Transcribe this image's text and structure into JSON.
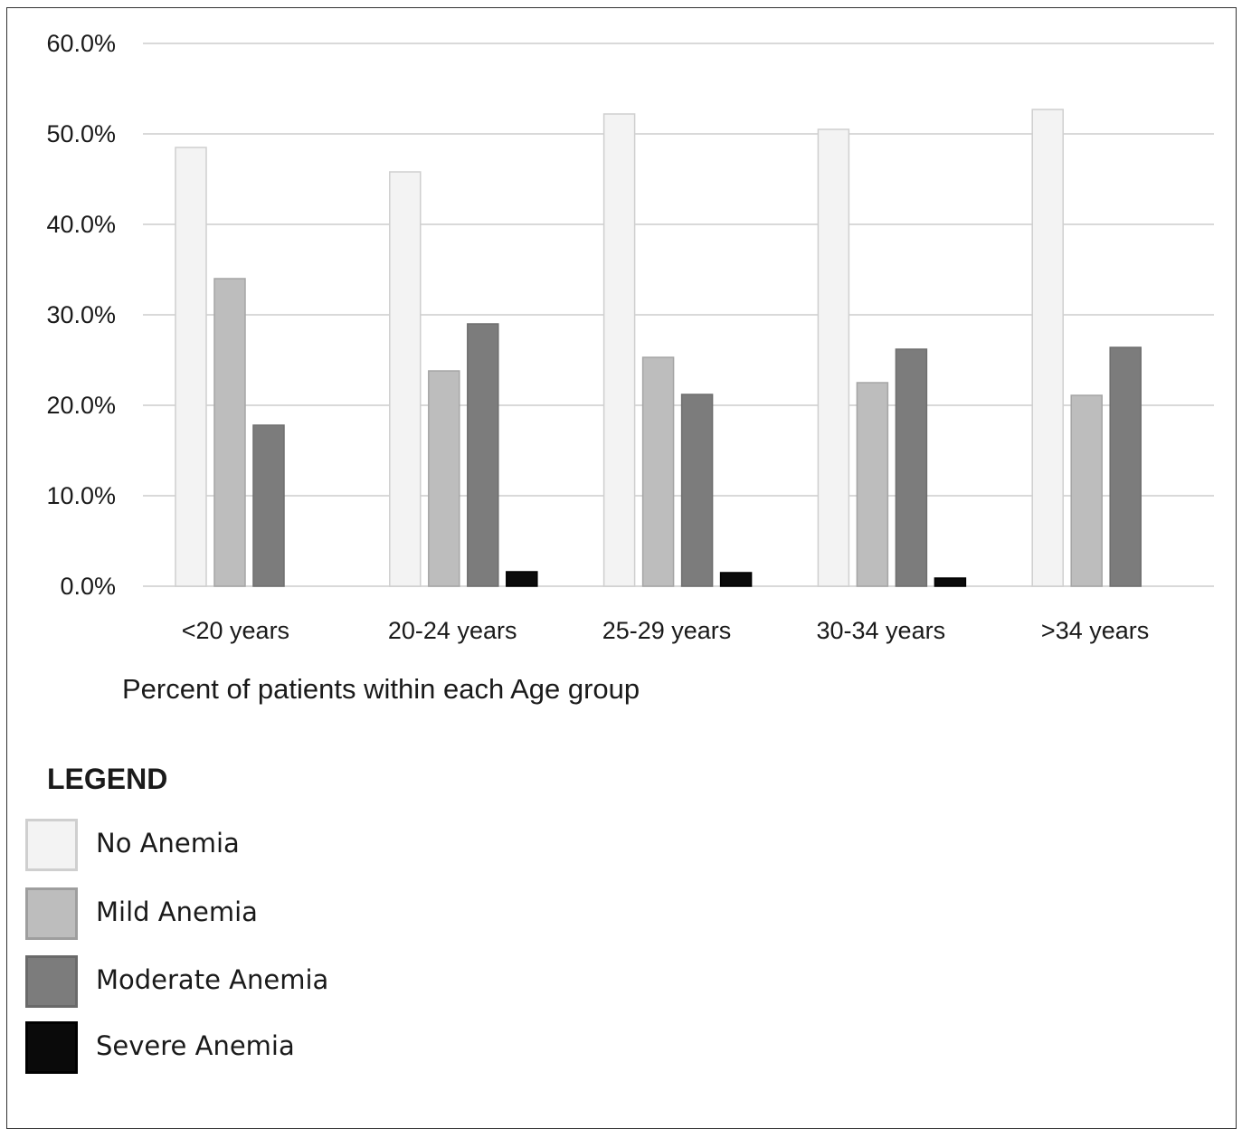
{
  "chart_data": {
    "type": "bar",
    "categories": [
      "<20 years",
      "20-24 years",
      "25-29 years",
      "30-34 years",
      ">34 years"
    ],
    "series": [
      {
        "name": "No Anemia",
        "values": [
          48.5,
          45.8,
          52.2,
          50.5,
          52.7
        ],
        "color": "#f3f3f3"
      },
      {
        "name": "Mild Anemia",
        "values": [
          34.0,
          23.8,
          25.3,
          22.5,
          21.1
        ],
        "color": "#bdbdbd"
      },
      {
        "name": "Moderate Anemia",
        "values": [
          17.8,
          29.0,
          21.2,
          26.2,
          26.4
        ],
        "color": "#7c7c7c"
      },
      {
        "name": "Severe Anemia",
        "values": [
          0.0,
          1.6,
          1.5,
          0.9,
          0.0
        ],
        "color": "#0a0a0a"
      }
    ],
    "yticks": [
      "0.0%",
      "10.0%",
      "20.0%",
      "30.0%",
      "40.0%",
      "50.0%",
      "60.0%"
    ],
    "ylim": [
      0,
      60
    ],
    "grid": true,
    "xlabel": "Percent of patients within each Age group",
    "legend_title": "LEGEND",
    "legend_position": "bottom-left"
  }
}
